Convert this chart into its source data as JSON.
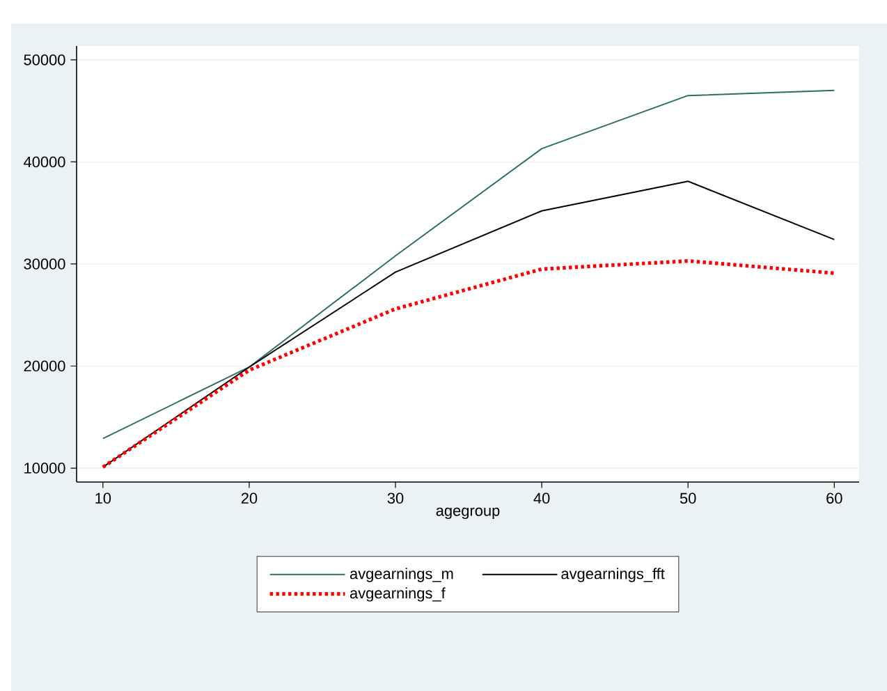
{
  "chart_data": {
    "type": "line",
    "xlabel": "agegroup",
    "x": [
      10,
      20,
      30,
      40,
      50,
      60
    ],
    "series": [
      {
        "name": "avgearnings_m",
        "color": "#2e6e6a",
        "line_style": "solid",
        "values": [
          12900,
          19900,
          30800,
          41300,
          46500,
          47000
        ]
      },
      {
        "name": "avgearnings_fft",
        "color": "#000000",
        "line_style": "solid",
        "values": [
          10100,
          19900,
          29200,
          35200,
          38100,
          32400
        ]
      },
      {
        "name": "avgearnings_f",
        "color": "#ff0000",
        "line_style": "dotted",
        "values": [
          10100,
          19600,
          25600,
          29500,
          30300,
          29100
        ]
      }
    ],
    "xlim": [
      8.2,
      61.7
    ],
    "ylim": [
      8640,
      51360
    ],
    "xticks": [
      10,
      20,
      30,
      40,
      50,
      60
    ],
    "yticks": [
      10000,
      20000,
      30000,
      40000,
      50000
    ],
    "grid": "y",
    "legend": "bottom",
    "marker": "none"
  }
}
